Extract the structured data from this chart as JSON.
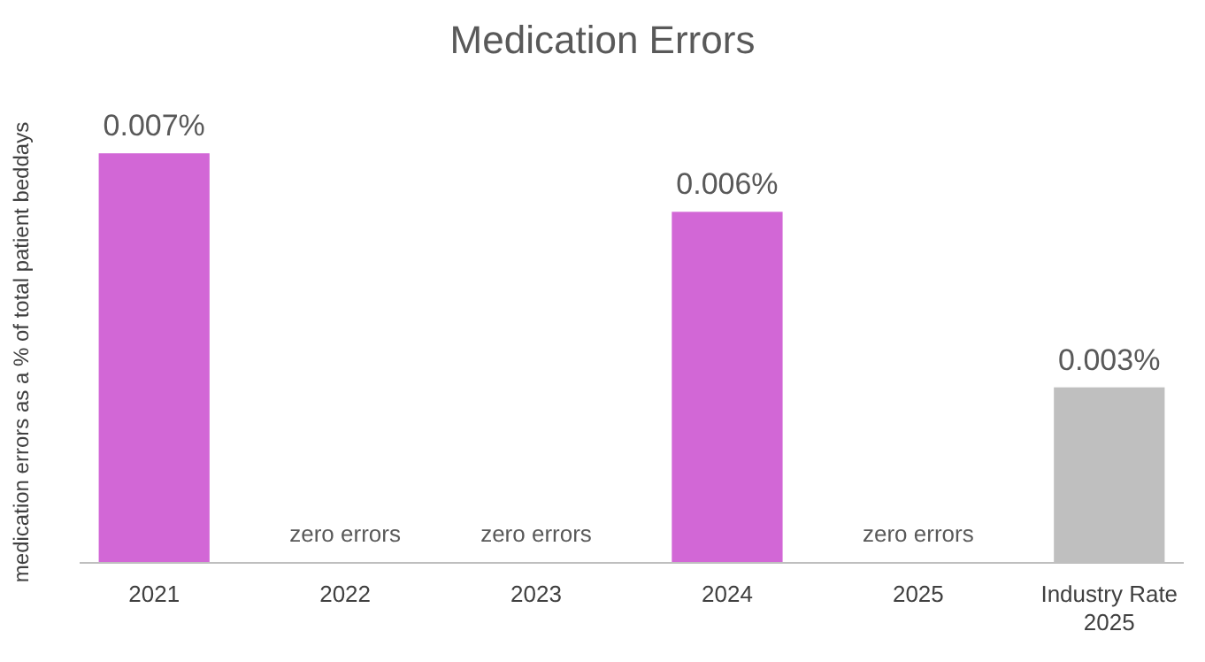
{
  "chart_data": {
    "type": "bar",
    "title": "Medication Errors",
    "ylabel": "medication errors as a % of total patient beddays",
    "categories": [
      "2021",
      "2022",
      "2023",
      "2024",
      "2025",
      "Industry Rate 2025"
    ],
    "values": [
      0.007,
      0,
      0,
      0.006,
      0,
      0.003
    ],
    "colors": [
      "#d267d6",
      "#d267d6",
      "#d267d6",
      "#d267d6",
      "#d267d6",
      "#bfbfbf"
    ],
    "value_labels": [
      "0.007%",
      "zero errors",
      "zero errors",
      "0.006%",
      "zero errors",
      "0.003%"
    ]
  }
}
